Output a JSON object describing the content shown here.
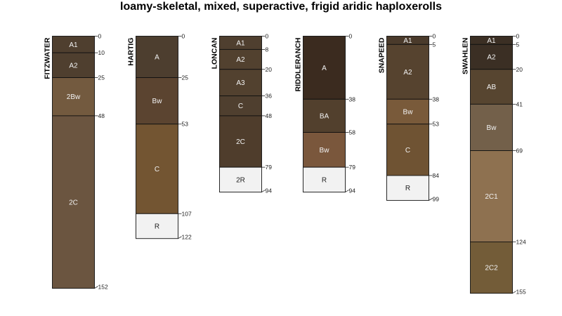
{
  "title": "loamy-skeletal, mixed, superactive, frigid aridic haploxerolls",
  "max_depth": 155,
  "profiles": [
    {
      "name": "FITZWATER",
      "horizons": [
        {
          "name": "A1",
          "top": 0,
          "bottom": 10,
          "color": "#4f3f2f"
        },
        {
          "name": "A2",
          "top": 10,
          "bottom": 25,
          "color": "#4f3f2f"
        },
        {
          "name": "2Bw",
          "top": 25,
          "bottom": 48,
          "color": "#735a3f"
        },
        {
          "name": "2C",
          "top": 48,
          "bottom": 152,
          "color": "#6b5540"
        }
      ],
      "depths": [
        "0",
        "10",
        "25",
        "48",
        "152"
      ]
    },
    {
      "name": "HARTIG",
      "horizons": [
        {
          "name": "A",
          "top": 0,
          "bottom": 25,
          "color": "#4d3e2f"
        },
        {
          "name": "Bw",
          "top": 25,
          "bottom": 53,
          "color": "#5b4430"
        },
        {
          "name": "C",
          "top": 53,
          "bottom": 107,
          "color": "#735532"
        },
        {
          "name": "R",
          "top": 107,
          "bottom": 122,
          "color": "#f2f2f2"
        }
      ],
      "depths": [
        "0",
        "25",
        "53",
        "107",
        "122"
      ]
    },
    {
      "name": "LONCAN",
      "horizons": [
        {
          "name": "A1",
          "top": 0,
          "bottom": 8,
          "color": "#4f3f2f"
        },
        {
          "name": "A2",
          "top": 8,
          "bottom": 20,
          "color": "#52412f"
        },
        {
          "name": "A3",
          "top": 20,
          "bottom": 36,
          "color": "#52412f"
        },
        {
          "name": "C",
          "top": 36,
          "bottom": 48,
          "color": "#4f3f2f"
        },
        {
          "name": "2C",
          "top": 48,
          "bottom": 79,
          "color": "#4f3d2c"
        },
        {
          "name": "2R",
          "top": 79,
          "bottom": 94,
          "color": "#f2f2f2"
        }
      ],
      "depths": [
        "0",
        "8",
        "20",
        "36",
        "48",
        "79",
        "94"
      ]
    },
    {
      "name": "RIDDLERANCH",
      "horizons": [
        {
          "name": "A",
          "top": 0,
          "bottom": 38,
          "color": "#3b2b1f"
        },
        {
          "name": "BA",
          "top": 38,
          "bottom": 58,
          "color": "#52402d"
        },
        {
          "name": "Bw",
          "top": 58,
          "bottom": 79,
          "color": "#7a573c"
        },
        {
          "name": "R",
          "top": 79,
          "bottom": 94,
          "color": "#f2f2f2"
        }
      ],
      "depths": [
        "0",
        "38",
        "58",
        "79",
        "94"
      ]
    },
    {
      "name": "SNAPEED",
      "horizons": [
        {
          "name": "A1",
          "top": 0,
          "bottom": 5,
          "color": "#4a3a2b"
        },
        {
          "name": "A2",
          "top": 5,
          "bottom": 38,
          "color": "#56432f"
        },
        {
          "name": "Bw",
          "top": 38,
          "bottom": 53,
          "color": "#795a3a"
        },
        {
          "name": "C",
          "top": 53,
          "bottom": 84,
          "color": "#6f5333"
        },
        {
          "name": "R",
          "top": 84,
          "bottom": 99,
          "color": "#f2f2f2"
        }
      ],
      "depths": [
        "0",
        "5",
        "38",
        "53",
        "84",
        "99"
      ]
    },
    {
      "name": "SWAHLEN",
      "horizons": [
        {
          "name": "A1",
          "top": 0,
          "bottom": 5,
          "color": "#3b2f24"
        },
        {
          "name": "A2",
          "top": 5,
          "bottom": 20,
          "color": "#3b2f24"
        },
        {
          "name": "AB",
          "top": 20,
          "bottom": 41,
          "color": "#574530"
        },
        {
          "name": "Bw",
          "top": 41,
          "bottom": 69,
          "color": "#73604a"
        },
        {
          "name": "2C1",
          "top": 69,
          "bottom": 124,
          "color": "#8e7150"
        },
        {
          "name": "2C2",
          "top": 124,
          "bottom": 155,
          "color": "#735c38"
        }
      ],
      "depths": [
        "0",
        "5",
        "20",
        "41",
        "69",
        "124",
        "155"
      ]
    }
  ]
}
